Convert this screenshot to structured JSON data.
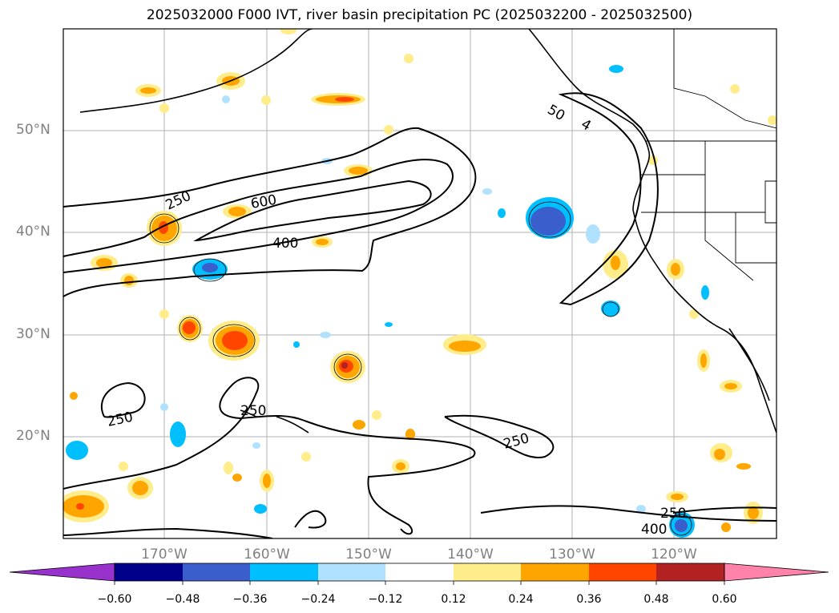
{
  "title": "2025032000 F000 IVT, river basin precipitation PC (2025032200 - 2025032500)",
  "lat_labels": [
    "50°N",
    "40°N",
    "30°N",
    "20°N"
  ],
  "lon_labels": [
    "170°W",
    "160°W",
    "150°W",
    "140°W",
    "130°W",
    "120°W"
  ],
  "contour_labels": [
    "250",
    "600",
    "400",
    "250",
    "250",
    "250",
    "250",
    "400",
    "50",
    "4"
  ],
  "colorbar": {
    "tick_labels": [
      "−0.60",
      "−0.48",
      "−0.36",
      "−0.24",
      "−0.12",
      "0.12",
      "0.24",
      "0.36",
      "0.48",
      "0.60"
    ],
    "colors": [
      "#9932cc",
      "#00008b",
      "#3a5fcd",
      "#00bfff",
      "#b0e2ff",
      "#ffffff",
      "#ffec8b",
      "#ffa500",
      "#ff4500",
      "#b22222",
      "#ff82ab"
    ]
  },
  "colors": {
    "contour": "#000000",
    "grid": "#b0b0b0",
    "coast": "#000000"
  }
}
